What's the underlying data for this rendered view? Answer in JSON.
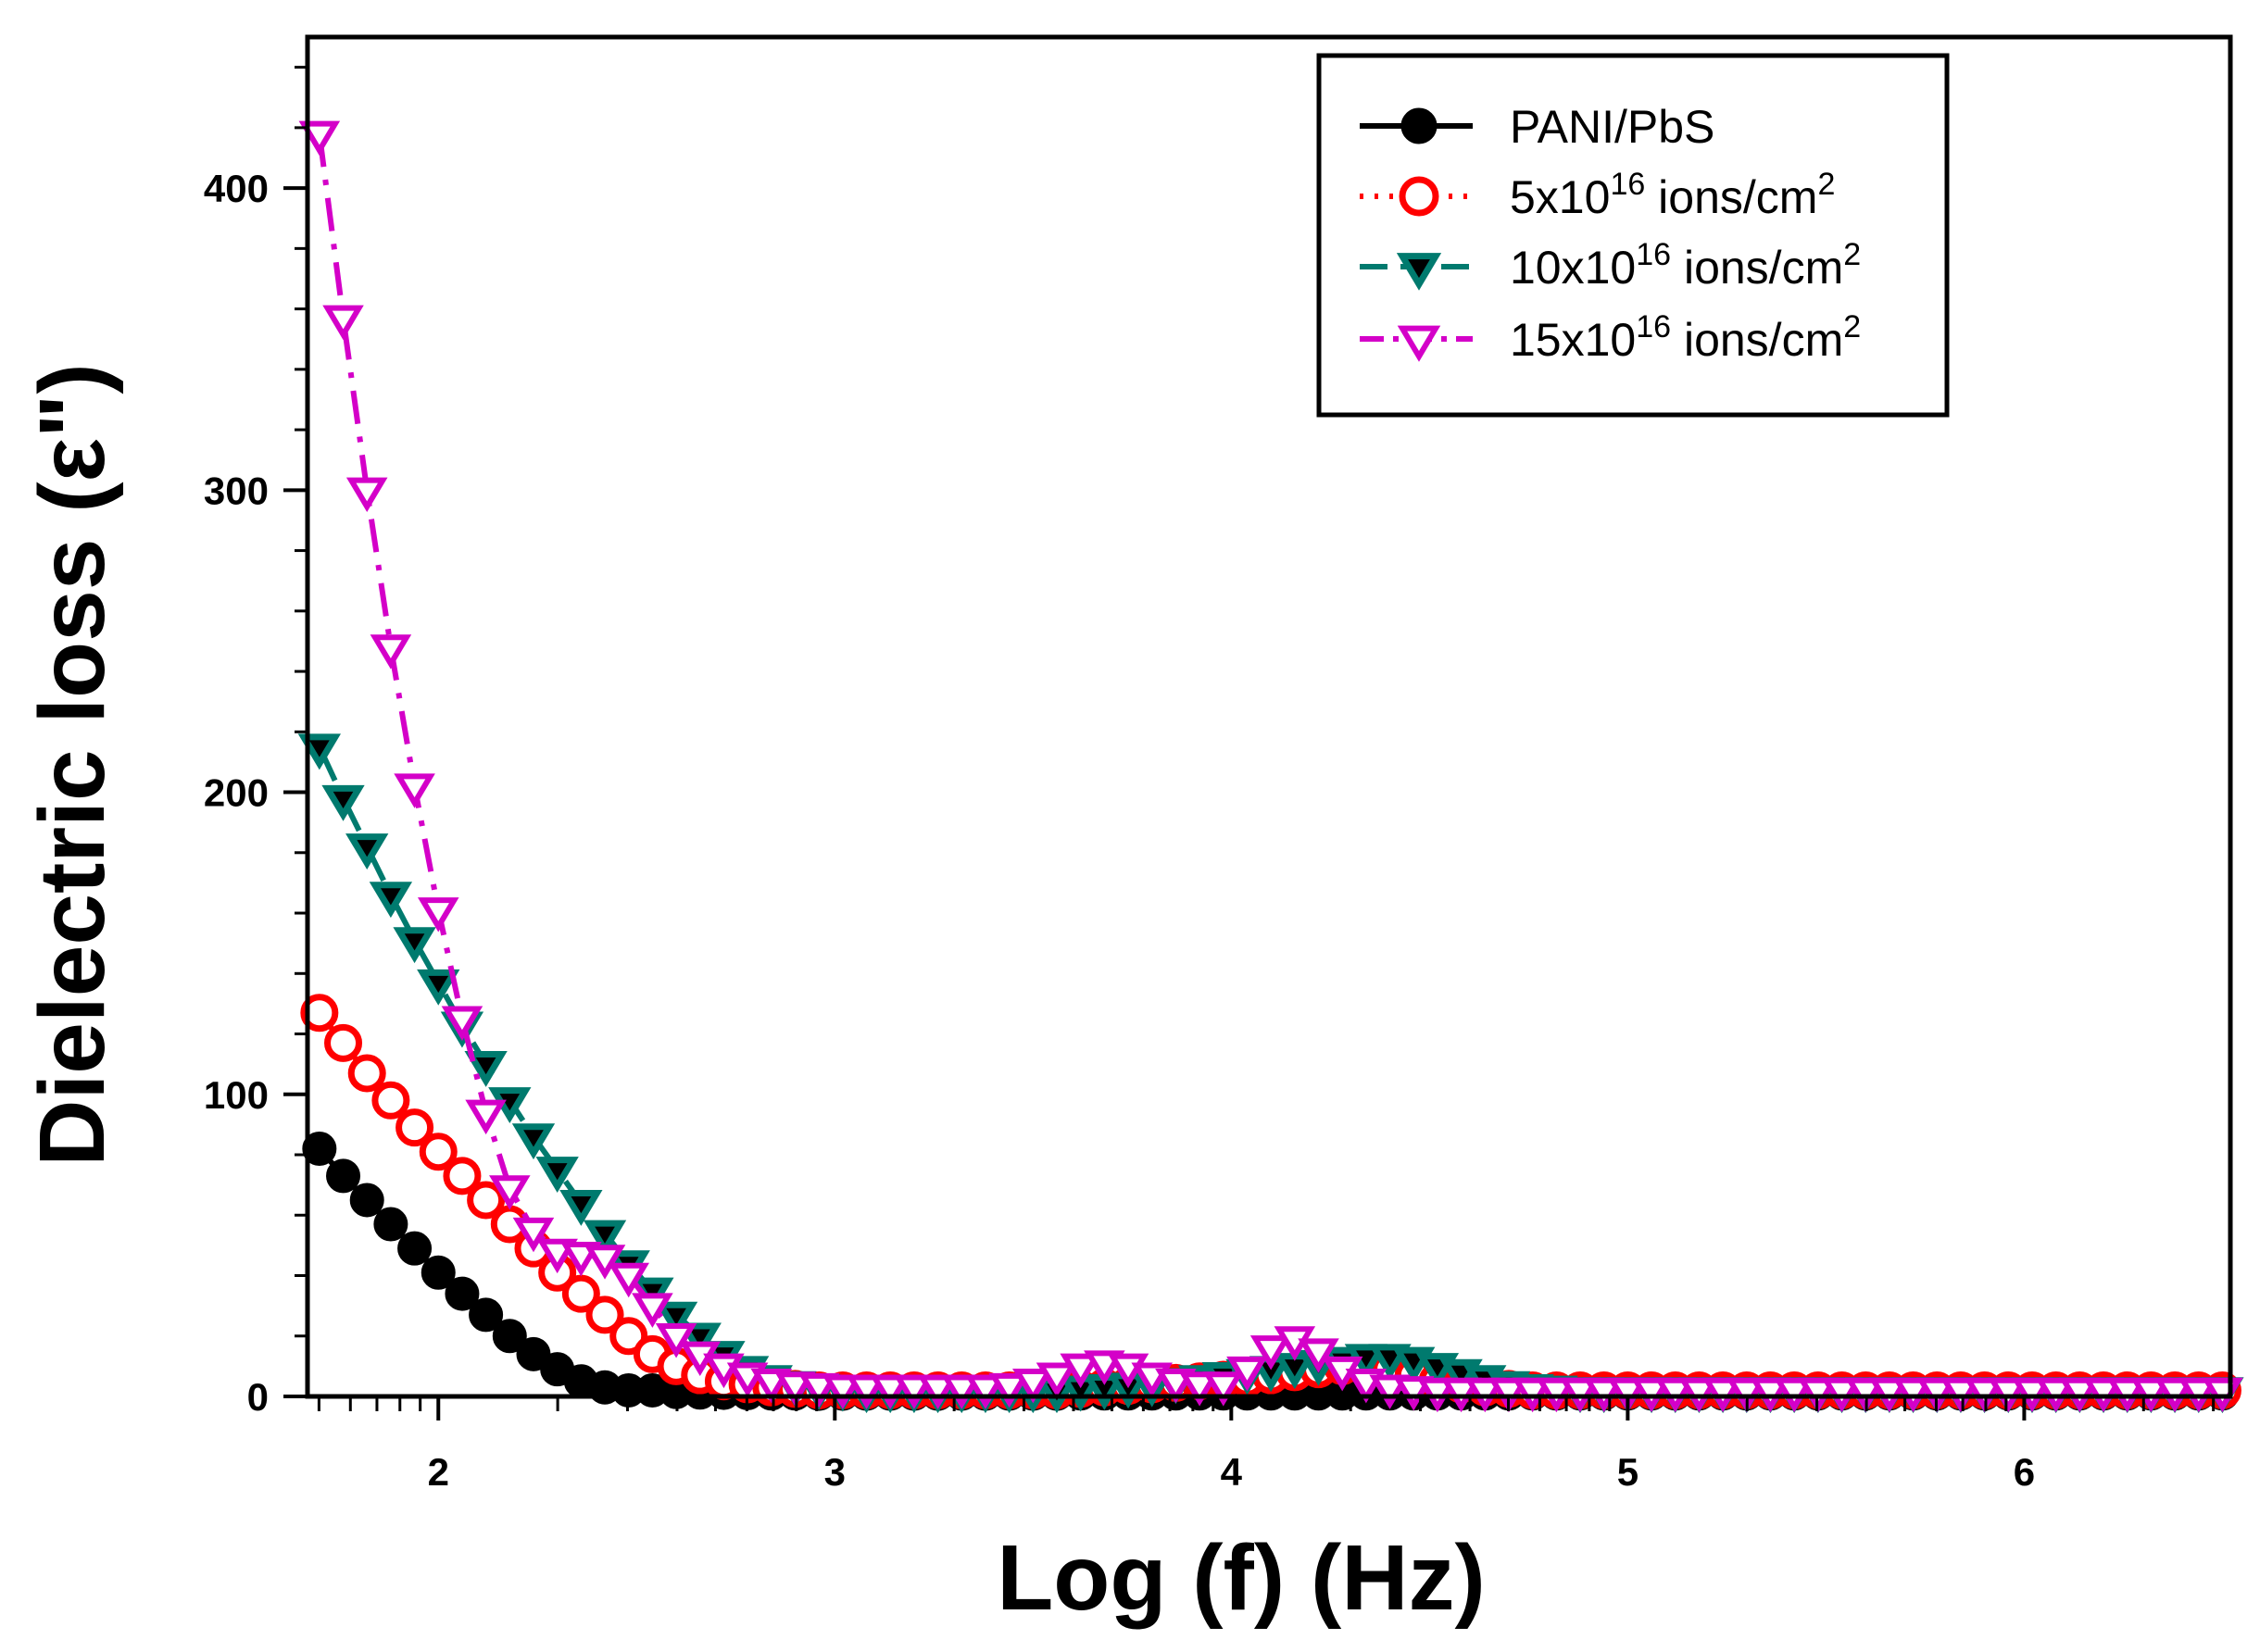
{
  "chart_data": {
    "type": "line",
    "title": "",
    "xlabel": "Log (f) (Hz)",
    "ylabel": "Dielectric loss (ε\")",
    "xlim": [
      1.67,
      6.52
    ],
    "ylim": [
      0,
      450
    ],
    "xticks": [
      2,
      3,
      4,
      5,
      6
    ],
    "yticks": [
      0,
      100,
      200,
      300,
      400
    ],
    "grid": false,
    "legend_position": "top-right",
    "x": [
      1.7,
      1.76,
      1.82,
      1.88,
      1.94,
      2.0,
      2.06,
      2.12,
      2.18,
      2.24,
      2.3,
      2.36,
      2.42,
      2.48,
      2.54,
      2.6,
      2.66,
      2.72,
      2.78,
      2.84,
      2.9,
      2.96,
      3.02,
      3.08,
      3.14,
      3.2,
      3.26,
      3.32,
      3.38,
      3.44,
      3.5,
      3.56,
      3.62,
      3.68,
      3.74,
      3.8,
      3.86,
      3.92,
      3.98,
      4.04,
      4.1,
      4.16,
      4.22,
      4.28,
      4.34,
      4.4,
      4.46,
      4.52,
      4.58,
      4.64,
      4.7,
      4.76,
      4.82,
      4.88,
      4.94,
      5.0,
      5.06,
      5.12,
      5.18,
      5.24,
      5.3,
      5.36,
      5.42,
      5.48,
      5.54,
      5.6,
      5.66,
      5.72,
      5.78,
      5.84,
      5.9,
      5.96,
      6.02,
      6.08,
      6.14,
      6.2,
      6.26,
      6.32,
      6.38,
      6.44,
      6.5
    ],
    "series": [
      {
        "name": "PANI/PbS",
        "color": "#000000",
        "marker": "circle-filled",
        "line": "solid",
        "values": [
          82,
          73,
          65,
          57,
          49,
          41,
          34,
          27,
          20,
          14,
          9,
          5,
          3,
          2,
          2,
          1.5,
          1.3,
          1.2,
          1.1,
          1.0,
          1.0,
          0.9,
          0.9,
          0.9,
          0.9,
          0.9,
          0.9,
          0.9,
          0.9,
          0.9,
          0.9,
          0.9,
          1.0,
          1.0,
          1.0,
          1.0,
          1.0,
          1.0,
          1.0,
          1.0,
          1.0,
          1.0,
          1.0,
          1.0,
          1.0,
          1.0,
          1.0,
          1.0,
          1.0,
          1.0,
          1.0,
          1.0,
          1.0,
          1.0,
          1.0,
          1.0,
          1.0,
          1.0,
          1.0,
          1.0,
          1.0,
          1.0,
          1.0,
          1.0,
          1.0,
          1.0,
          1.0,
          1.0,
          1.0,
          1.0,
          1.0,
          1.0,
          1.0,
          1.0,
          1.0,
          1.0,
          1.0,
          1.0,
          1.0,
          1.0,
          1.0
        ]
      },
      {
        "name_main": "5x10",
        "name_sup": "16",
        "name_rest": " ions/cm",
        "name_sup2": "2",
        "color": "#ff0000",
        "marker": "circle-open",
        "line": "dotted",
        "values": [
          127,
          117,
          107,
          98,
          89,
          81,
          73,
          65,
          57,
          49,
          41,
          34,
          27,
          20,
          14,
          10,
          7,
          5,
          4,
          3,
          2.5,
          2,
          2,
          2,
          2,
          2,
          2,
          2,
          2,
          2,
          2,
          2,
          2.5,
          3,
          3.5,
          4,
          4.5,
          5,
          5.5,
          6,
          7,
          8,
          9,
          10,
          10,
          9,
          7,
          5,
          4,
          3,
          2.5,
          2,
          2,
          2,
          2,
          2,
          2,
          2,
          2,
          2,
          2,
          2,
          2,
          2,
          2,
          2,
          2,
          2,
          2,
          2,
          2,
          2,
          2,
          2,
          2,
          2,
          2,
          2,
          2,
          2,
          2
        ]
      },
      {
        "name_main": "10x10",
        "name_sup": "16",
        "name_rest": " ions/cm",
        "name_sup2": "2",
        "color": "#007a6e",
        "marker": "triangle-down-filled",
        "line": "dashed",
        "values": [
          215,
          198,
          182,
          166,
          151,
          137,
          123,
          110,
          98,
          86,
          75,
          64,
          54,
          44,
          35,
          27,
          20,
          14,
          9,
          6,
          4,
          3,
          2.5,
          2,
          2,
          2,
          2,
          2,
          2,
          2,
          2,
          2,
          2.5,
          3,
          3.5,
          4,
          5,
          6,
          7,
          8,
          9,
          10,
          11,
          12,
          13,
          13,
          12,
          10,
          8,
          6,
          4,
          3,
          2.5,
          2,
          2,
          2,
          2,
          2,
          2,
          2,
          2,
          2,
          2,
          2,
          2,
          2,
          2,
          2,
          2,
          2,
          2,
          2,
          2,
          2,
          2,
          2,
          2,
          2,
          2,
          2,
          2
        ]
      },
      {
        "name_main": "15x10",
        "name_sup": "16",
        "name_rest": " ions/cm",
        "name_sup2": "2",
        "color": "#d400c8",
        "marker": "triangle-down-open",
        "line": "dash-dot",
        "values": [
          418,
          357,
          300,
          248,
          202,
          161,
          125,
          94,
          69,
          55,
          48,
          47,
          46,
          40,
          30,
          20,
          14,
          10,
          7,
          5,
          4,
          3.5,
          3,
          3,
          3,
          3,
          3,
          3,
          3,
          3.5,
          5,
          7,
          10,
          11,
          10,
          7,
          5,
          4,
          4,
          9,
          16,
          19,
          15,
          9,
          5,
          3,
          2.5,
          2,
          2,
          2,
          2,
          2,
          2,
          2,
          2,
          2,
          2,
          2,
          2,
          2,
          2,
          2,
          2,
          2,
          2,
          2,
          2,
          2,
          2,
          2,
          2,
          2,
          2,
          2,
          2,
          2,
          2,
          2,
          2,
          2,
          2
        ]
      }
    ],
    "legend": [
      {
        "main": "PANI/PbS"
      },
      {
        "main": "5x10",
        "sup": "16",
        "rest": " ions/cm",
        "sup2": "2"
      },
      {
        "main": "10x10",
        "sup": "16",
        "rest": " ions/cm",
        "sup2": "2"
      },
      {
        "main": "15x10",
        "sup": "16",
        "rest": " ions/cm",
        "sup2": "2"
      }
    ]
  }
}
